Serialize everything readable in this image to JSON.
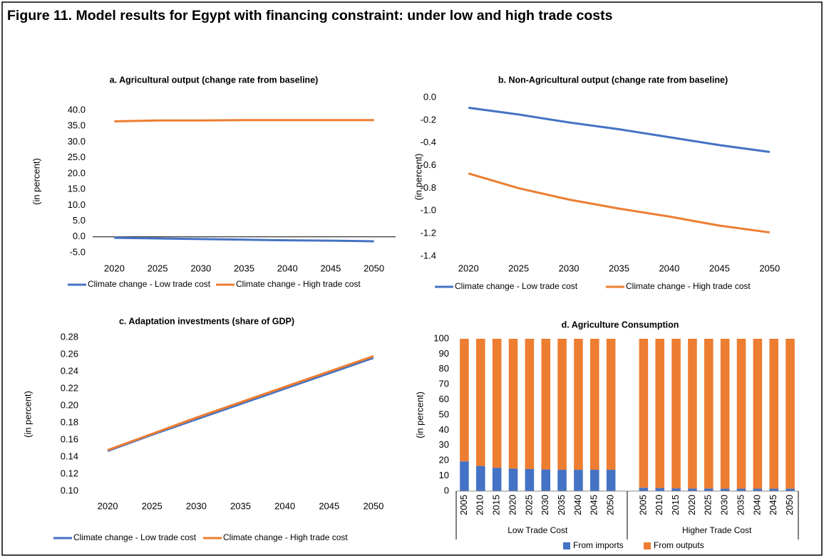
{
  "title": "Figure 11. Model results for Egypt with financing constraint: under low and high trade costs",
  "chart_data": [
    {
      "type": "line",
      "title": "a. Agricultural output (change rate from baseline)",
      "ylabel": "(in percent)",
      "categories": [
        "2020",
        "2025",
        "2030",
        "2035",
        "2040",
        "2045",
        "2050"
      ],
      "series": [
        {
          "name": "Climate change - Low trade cost",
          "color": "#4472c4",
          "values": [
            -0.3,
            -0.5,
            -0.7,
            -0.9,
            -1.1,
            -1.2,
            -1.4
          ]
        },
        {
          "name": "Climate change - High trade cost",
          "color": "#ed7d31",
          "values": [
            36.5,
            36.8,
            36.8,
            36.9,
            36.9,
            36.9,
            36.9
          ]
        }
      ],
      "ylim": [
        -5,
        40
      ],
      "yticks": [
        {
          "value": -5,
          "label": "-5.0"
        },
        {
          "value": 0,
          "label": "0.0"
        },
        {
          "value": 5,
          "label": "5.0"
        },
        {
          "value": 10,
          "label": "10.0"
        },
        {
          "value": 15,
          "label": "15.0"
        },
        {
          "value": 20,
          "label": "20.0"
        },
        {
          "value": 25,
          "label": "25.0"
        },
        {
          "value": 30,
          "label": "30.0"
        },
        {
          "value": 35,
          "label": "35.0"
        },
        {
          "value": 40,
          "label": "40.0"
        }
      ],
      "legend": "bottom"
    },
    {
      "type": "line",
      "title": "b. Non-Agricultural output (change rate from baseline)",
      "ylabel": "(in percent)",
      "categories": [
        "2020",
        "2025",
        "2030",
        "2035",
        "2040",
        "2045",
        "2050"
      ],
      "series": [
        {
          "name": "Climate change - Low trade cost",
          "color": "#4472c4",
          "values": [
            -0.09,
            -0.15,
            -0.22,
            -0.28,
            -0.35,
            -0.42,
            -0.48
          ]
        },
        {
          "name": "Climate change - High trade cost",
          "color": "#ed7d31",
          "values": [
            -0.67,
            -0.8,
            -0.9,
            -0.98,
            -1.05,
            -1.13,
            -1.19
          ]
        }
      ],
      "ylim": [
        -1.4,
        0
      ],
      "yticks": [
        {
          "value": -1.4,
          "label": "-1.4"
        },
        {
          "value": -1.2,
          "label": "-1.2"
        },
        {
          "value": -1,
          "label": "-1.0"
        },
        {
          "value": -0.8,
          "label": "-0.8"
        },
        {
          "value": -0.6,
          "label": "-0.6"
        },
        {
          "value": -0.4,
          "label": "-0.4"
        },
        {
          "value": -0.2,
          "label": "-0.2"
        },
        {
          "value": 0,
          "label": "0.0"
        }
      ],
      "legend": "bottom"
    },
    {
      "type": "line",
      "title": "c. Adaptation investments (share of GDP)",
      "ylabel": "(in percent)",
      "categories": [
        "2020",
        "2025",
        "2030",
        "2035",
        "2040",
        "2045",
        "2050"
      ],
      "series": [
        {
          "name": "Climate change - Low trade cost",
          "color": "#4472c4",
          "values": [
            0.147,
            0.166,
            0.184,
            0.202,
            0.22,
            0.238,
            0.256
          ]
        },
        {
          "name": "Climate change - High trade cost",
          "color": "#ed7d31",
          "values": [
            0.148,
            0.167,
            0.186,
            0.204,
            0.222,
            0.24,
            0.258
          ]
        }
      ],
      "ylim": [
        0.1,
        0.28
      ],
      "yticks": [
        {
          "value": 0.1,
          "label": "0.10"
        },
        {
          "value": 0.12,
          "label": "0.12"
        },
        {
          "value": 0.14,
          "label": "0.14"
        },
        {
          "value": 0.16,
          "label": "0.16"
        },
        {
          "value": 0.18,
          "label": "0.18"
        },
        {
          "value": 0.2,
          "label": "0.20"
        },
        {
          "value": 0.22,
          "label": "0.22"
        },
        {
          "value": 0.24,
          "label": "0.24"
        },
        {
          "value": 0.26,
          "label": "0.26"
        },
        {
          "value": 0.28,
          "label": "0.28"
        }
      ],
      "legend": "bottom"
    },
    {
      "type": "stacked-bar",
      "title": "d. Agriculture Consumption",
      "ylabel": "(in percent)",
      "categories": [
        "2005",
        "2010",
        "2015",
        "2020",
        "2025",
        "2030",
        "2035",
        "2040",
        "2045",
        "2050",
        null,
        "2005",
        "2010",
        "2015",
        "2020",
        "2025",
        "2030",
        "2035",
        "2040",
        "2045",
        "2050"
      ],
      "groups": [
        "Low Trade Cost",
        "Higher Trade Cost"
      ],
      "series": [
        {
          "name": "From imports",
          "color": "#4472c4",
          "values": [
            19.5,
            16.5,
            15.3,
            14.8,
            14.5,
            14.2,
            14,
            14,
            14,
            14,
            null,
            2.2,
            2,
            1.8,
            1.7,
            1.7,
            1.6,
            1.6,
            1.6,
            1.6,
            1.6
          ]
        },
        {
          "name": "From outputs",
          "color": "#ed7d31",
          "values": [
            80.5,
            83.5,
            84.7,
            85.2,
            85.5,
            85.8,
            86,
            86,
            86,
            86,
            null,
            97.8,
            98,
            98.2,
            98.3,
            98.3,
            98.4,
            98.4,
            98.4,
            98.4,
            98.4
          ]
        }
      ],
      "ylim": [
        0,
        100
      ],
      "yticks": [
        0,
        10,
        20,
        30,
        40,
        50,
        60,
        70,
        80,
        90,
        100
      ],
      "legend": "bottom"
    }
  ]
}
